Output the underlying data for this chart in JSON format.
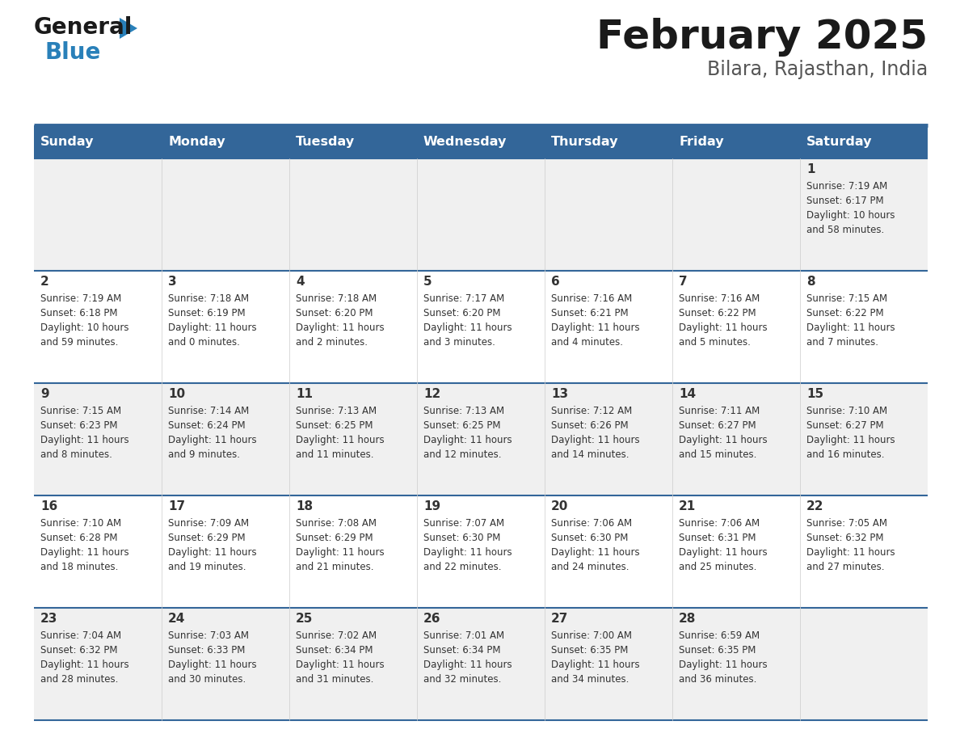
{
  "title": "February 2025",
  "subtitle": "Bilara, Rajasthan, India",
  "days_of_week": [
    "Sunday",
    "Monday",
    "Tuesday",
    "Wednesday",
    "Thursday",
    "Friday",
    "Saturday"
  ],
  "header_bg_color": "#336699",
  "header_text_color": "#ffffff",
  "cell_bg_light": "#f0f0f0",
  "cell_bg_white": "#ffffff",
  "row_line_color": "#336699",
  "day_number_color": "#333333",
  "cell_text_color": "#333333",
  "title_color": "#1a1a1a",
  "subtitle_color": "#555555",
  "logo_general_color": "#1a1a1a",
  "logo_blue_color": "#2980b9",
  "calendar_data": [
    {
      "day": 1,
      "col": 6,
      "row": 0,
      "sunrise": "7:19 AM",
      "sunset": "6:17 PM",
      "daylight_hours": 10,
      "daylight_minutes": 58
    },
    {
      "day": 2,
      "col": 0,
      "row": 1,
      "sunrise": "7:19 AM",
      "sunset": "6:18 PM",
      "daylight_hours": 10,
      "daylight_minutes": 59
    },
    {
      "day": 3,
      "col": 1,
      "row": 1,
      "sunrise": "7:18 AM",
      "sunset": "6:19 PM",
      "daylight_hours": 11,
      "daylight_minutes": 0
    },
    {
      "day": 4,
      "col": 2,
      "row": 1,
      "sunrise": "7:18 AM",
      "sunset": "6:20 PM",
      "daylight_hours": 11,
      "daylight_minutes": 2
    },
    {
      "day": 5,
      "col": 3,
      "row": 1,
      "sunrise": "7:17 AM",
      "sunset": "6:20 PM",
      "daylight_hours": 11,
      "daylight_minutes": 3
    },
    {
      "day": 6,
      "col": 4,
      "row": 1,
      "sunrise": "7:16 AM",
      "sunset": "6:21 PM",
      "daylight_hours": 11,
      "daylight_minutes": 4
    },
    {
      "day": 7,
      "col": 5,
      "row": 1,
      "sunrise": "7:16 AM",
      "sunset": "6:22 PM",
      "daylight_hours": 11,
      "daylight_minutes": 5
    },
    {
      "day": 8,
      "col": 6,
      "row": 1,
      "sunrise": "7:15 AM",
      "sunset": "6:22 PM",
      "daylight_hours": 11,
      "daylight_minutes": 7
    },
    {
      "day": 9,
      "col": 0,
      "row": 2,
      "sunrise": "7:15 AM",
      "sunset": "6:23 PM",
      "daylight_hours": 11,
      "daylight_minutes": 8
    },
    {
      "day": 10,
      "col": 1,
      "row": 2,
      "sunrise": "7:14 AM",
      "sunset": "6:24 PM",
      "daylight_hours": 11,
      "daylight_minutes": 9
    },
    {
      "day": 11,
      "col": 2,
      "row": 2,
      "sunrise": "7:13 AM",
      "sunset": "6:25 PM",
      "daylight_hours": 11,
      "daylight_minutes": 11
    },
    {
      "day": 12,
      "col": 3,
      "row": 2,
      "sunrise": "7:13 AM",
      "sunset": "6:25 PM",
      "daylight_hours": 11,
      "daylight_minutes": 12
    },
    {
      "day": 13,
      "col": 4,
      "row": 2,
      "sunrise": "7:12 AM",
      "sunset": "6:26 PM",
      "daylight_hours": 11,
      "daylight_minutes": 14
    },
    {
      "day": 14,
      "col": 5,
      "row": 2,
      "sunrise": "7:11 AM",
      "sunset": "6:27 PM",
      "daylight_hours": 11,
      "daylight_minutes": 15
    },
    {
      "day": 15,
      "col": 6,
      "row": 2,
      "sunrise": "7:10 AM",
      "sunset": "6:27 PM",
      "daylight_hours": 11,
      "daylight_minutes": 16
    },
    {
      "day": 16,
      "col": 0,
      "row": 3,
      "sunrise": "7:10 AM",
      "sunset": "6:28 PM",
      "daylight_hours": 11,
      "daylight_minutes": 18
    },
    {
      "day": 17,
      "col": 1,
      "row": 3,
      "sunrise": "7:09 AM",
      "sunset": "6:29 PM",
      "daylight_hours": 11,
      "daylight_minutes": 19
    },
    {
      "day": 18,
      "col": 2,
      "row": 3,
      "sunrise": "7:08 AM",
      "sunset": "6:29 PM",
      "daylight_hours": 11,
      "daylight_minutes": 21
    },
    {
      "day": 19,
      "col": 3,
      "row": 3,
      "sunrise": "7:07 AM",
      "sunset": "6:30 PM",
      "daylight_hours": 11,
      "daylight_minutes": 22
    },
    {
      "day": 20,
      "col": 4,
      "row": 3,
      "sunrise": "7:06 AM",
      "sunset": "6:30 PM",
      "daylight_hours": 11,
      "daylight_minutes": 24
    },
    {
      "day": 21,
      "col": 5,
      "row": 3,
      "sunrise": "7:06 AM",
      "sunset": "6:31 PM",
      "daylight_hours": 11,
      "daylight_minutes": 25
    },
    {
      "day": 22,
      "col": 6,
      "row": 3,
      "sunrise": "7:05 AM",
      "sunset": "6:32 PM",
      "daylight_hours": 11,
      "daylight_minutes": 27
    },
    {
      "day": 23,
      "col": 0,
      "row": 4,
      "sunrise": "7:04 AM",
      "sunset": "6:32 PM",
      "daylight_hours": 11,
      "daylight_minutes": 28
    },
    {
      "day": 24,
      "col": 1,
      "row": 4,
      "sunrise": "7:03 AM",
      "sunset": "6:33 PM",
      "daylight_hours": 11,
      "daylight_minutes": 30
    },
    {
      "day": 25,
      "col": 2,
      "row": 4,
      "sunrise": "7:02 AM",
      "sunset": "6:34 PM",
      "daylight_hours": 11,
      "daylight_minutes": 31
    },
    {
      "day": 26,
      "col": 3,
      "row": 4,
      "sunrise": "7:01 AM",
      "sunset": "6:34 PM",
      "daylight_hours": 11,
      "daylight_minutes": 32
    },
    {
      "day": 27,
      "col": 4,
      "row": 4,
      "sunrise": "7:00 AM",
      "sunset": "6:35 PM",
      "daylight_hours": 11,
      "daylight_minutes": 34
    },
    {
      "day": 28,
      "col": 5,
      "row": 4,
      "sunrise": "6:59 AM",
      "sunset": "6:35 PM",
      "daylight_hours": 11,
      "daylight_minutes": 36
    }
  ]
}
